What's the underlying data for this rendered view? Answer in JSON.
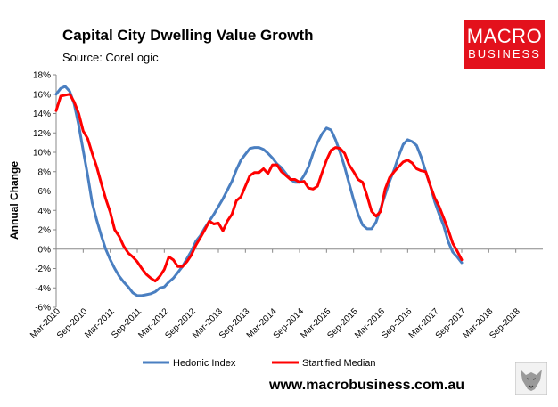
{
  "header": {
    "title": "Capital City Dwelling Value Growth",
    "source": "Source: CoreLogic"
  },
  "logo": {
    "line1": "MACRO",
    "line2": "BUSINESS",
    "color": "#e3111c"
  },
  "footer": {
    "website": "www.macrobusiness.com.au",
    "mascot_icon": "wolf-icon"
  },
  "colors": {
    "hedonic": "#4a7fc1",
    "stratified": "#ff0000"
  },
  "chart_data": {
    "type": "line",
    "title": "Capital City Dwelling Value Growth",
    "xlabel": "",
    "ylabel": "Annual Change",
    "ylim": [
      -6,
      18
    ],
    "yticks": [
      -6,
      -4,
      -2,
      0,
      2,
      4,
      6,
      8,
      10,
      12,
      14,
      16,
      18
    ],
    "ytick_labels": [
      "-6%",
      "-4%",
      "-2%",
      "0%",
      "2%",
      "4%",
      "6%",
      "8%",
      "10%",
      "12%",
      "14%",
      "16%",
      "18%"
    ],
    "x_start": "Mar-2010",
    "x_end": "Oct-2018",
    "xticks": [
      0,
      6,
      12,
      18,
      24,
      30,
      36,
      42,
      48,
      54,
      60,
      66,
      72,
      78,
      84,
      90,
      96,
      102
    ],
    "xtick_labels": [
      "Mar-2010",
      "Sep-2010",
      "Mar-2011",
      "Sep-2011",
      "Mar-2012",
      "Sep-2012",
      "Mar-2013",
      "Sep-2013",
      "Mar-2014",
      "Sep-2014",
      "Mar-2015",
      "Sep-2015",
      "Mar-2016",
      "Sep-2016",
      "Mar-2017",
      "Sep-2017",
      "Mar-2018",
      "Sep-2018"
    ],
    "legend": "bottom",
    "grid": false,
    "series": [
      {
        "name": "Hedonic Index",
        "color": "#4a7fc1",
        "points": [
          [
            0,
            16
          ],
          [
            1,
            16.6
          ],
          [
            2,
            16.8
          ],
          [
            3,
            16.3
          ],
          [
            4,
            15
          ],
          [
            5,
            12.8
          ],
          [
            6,
            10.2
          ],
          [
            7,
            7.6
          ],
          [
            8,
            4.8
          ],
          [
            9,
            3
          ],
          [
            10,
            1.4
          ],
          [
            11,
            0
          ],
          [
            12,
            -1.1
          ],
          [
            13,
            -2
          ],
          [
            14,
            -2.8
          ],
          [
            15,
            -3.4
          ],
          [
            16,
            -3.9
          ],
          [
            17,
            -4.5
          ],
          [
            18,
            -4.8
          ],
          [
            19,
            -4.8
          ],
          [
            20,
            -4.7
          ],
          [
            21,
            -4.6
          ],
          [
            22,
            -4.4
          ],
          [
            23,
            -4
          ],
          [
            24,
            -3.9
          ],
          [
            25,
            -3.4
          ],
          [
            26,
            -3
          ],
          [
            27,
            -2.4
          ],
          [
            28,
            -1.8
          ],
          [
            29,
            -1
          ],
          [
            30,
            -0.2
          ],
          [
            31,
            0.8
          ],
          [
            32,
            1.4
          ],
          [
            33,
            2.2
          ],
          [
            34,
            2.9
          ],
          [
            35,
            3.6
          ],
          [
            36,
            4.4
          ],
          [
            37,
            5.2
          ],
          [
            38,
            6.1
          ],
          [
            39,
            7
          ],
          [
            40,
            8.2
          ],
          [
            41,
            9.2
          ],
          [
            42,
            9.8
          ],
          [
            43,
            10.4
          ],
          [
            44,
            10.5
          ],
          [
            45,
            10.5
          ],
          [
            46,
            10.3
          ],
          [
            47,
            9.9
          ],
          [
            48,
            9.4
          ],
          [
            49,
            8.8
          ],
          [
            50,
            8.4
          ],
          [
            51,
            7.8
          ],
          [
            52,
            7.2
          ],
          [
            53,
            6.9
          ],
          [
            54,
            6.9
          ],
          [
            55,
            7.6
          ],
          [
            56,
            8.5
          ],
          [
            57,
            9.9
          ],
          [
            58,
            11
          ],
          [
            59,
            11.9
          ],
          [
            60,
            12.5
          ],
          [
            61,
            12.3
          ],
          [
            62,
            11.3
          ],
          [
            63,
            10
          ],
          [
            64,
            8.5
          ],
          [
            65,
            6.8
          ],
          [
            66,
            5.1
          ],
          [
            67,
            3.6
          ],
          [
            68,
            2.5
          ],
          [
            69,
            2.1
          ],
          [
            70,
            2.1
          ],
          [
            71,
            2.8
          ],
          [
            72,
            4.2
          ],
          [
            73,
            5.6
          ],
          [
            74,
            7
          ],
          [
            75,
            8.2
          ],
          [
            76,
            9.6
          ],
          [
            77,
            10.8
          ],
          [
            78,
            11.3
          ],
          [
            79,
            11.1
          ],
          [
            80,
            10.7
          ],
          [
            81,
            9.5
          ],
          [
            82,
            8
          ],
          [
            83,
            6.6
          ],
          [
            84,
            4.9
          ],
          [
            85,
            3.6
          ],
          [
            86,
            2.4
          ],
          [
            87,
            0.8
          ],
          [
            88,
            -0.3
          ],
          [
            89,
            -0.8
          ],
          [
            90,
            -1.4
          ]
        ]
      },
      {
        "name": "Startified Median",
        "color": "#ff0000",
        "points": [
          [
            0,
            14.3
          ],
          [
            1,
            15.8
          ],
          [
            2,
            15.9
          ],
          [
            3,
            16
          ],
          [
            4,
            15.2
          ],
          [
            5,
            14
          ],
          [
            6,
            12.2
          ],
          [
            7,
            11.4
          ],
          [
            8,
            9.9
          ],
          [
            9,
            8.5
          ],
          [
            10,
            6.8
          ],
          [
            11,
            5.2
          ],
          [
            12,
            3.8
          ],
          [
            13,
            2
          ],
          [
            14,
            1.3
          ],
          [
            15,
            0.3
          ],
          [
            16,
            -0.4
          ],
          [
            17,
            -0.8
          ],
          [
            18,
            -1.3
          ],
          [
            19,
            -2
          ],
          [
            20,
            -2.6
          ],
          [
            21,
            -3
          ],
          [
            22,
            -3.3
          ],
          [
            23,
            -2.8
          ],
          [
            24,
            -2.1
          ],
          [
            25,
            -0.8
          ],
          [
            26,
            -1.1
          ],
          [
            27,
            -1.8
          ],
          [
            28,
            -1.8
          ],
          [
            29,
            -1.3
          ],
          [
            30,
            -0.6
          ],
          [
            31,
            0.4
          ],
          [
            32,
            1.2
          ],
          [
            33,
            2
          ],
          [
            34,
            2.9
          ],
          [
            35,
            2.6
          ],
          [
            36,
            2.7
          ],
          [
            37,
            1.9
          ],
          [
            38,
            2.9
          ],
          [
            39,
            3.6
          ],
          [
            40,
            5
          ],
          [
            41,
            5.4
          ],
          [
            42,
            6.5
          ],
          [
            43,
            7.6
          ],
          [
            44,
            7.9
          ],
          [
            45,
            7.9
          ],
          [
            46,
            8.3
          ],
          [
            47,
            7.8
          ],
          [
            48,
            8.7
          ],
          [
            49,
            8.7
          ],
          [
            50,
            8
          ],
          [
            51,
            7.6
          ],
          [
            52,
            7.2
          ],
          [
            53,
            7.2
          ],
          [
            54,
            6.9
          ],
          [
            55,
            7
          ],
          [
            56,
            6.3
          ],
          [
            57,
            6.2
          ],
          [
            58,
            6.5
          ],
          [
            59,
            7.9
          ],
          [
            60,
            9.2
          ],
          [
            61,
            10.2
          ],
          [
            62,
            10.5
          ],
          [
            63,
            10.4
          ],
          [
            64,
            9.9
          ],
          [
            65,
            8.7
          ],
          [
            66,
            8
          ],
          [
            67,
            7.2
          ],
          [
            68,
            6.9
          ],
          [
            69,
            5.5
          ],
          [
            70,
            3.9
          ],
          [
            71,
            3.4
          ],
          [
            72,
            3.9
          ],
          [
            73,
            6.2
          ],
          [
            74,
            7.4
          ],
          [
            75,
            8
          ],
          [
            76,
            8.5
          ],
          [
            77,
            9
          ],
          [
            78,
            9.2
          ],
          [
            79,
            8.9
          ],
          [
            80,
            8.3
          ],
          [
            81,
            8.1
          ],
          [
            82,
            8
          ],
          [
            83,
            6.6
          ],
          [
            84,
            5.3
          ],
          [
            85,
            4.4
          ],
          [
            86,
            3.2
          ],
          [
            87,
            2
          ],
          [
            88,
            0.6
          ],
          [
            89,
            -0.2
          ],
          [
            90,
            -1.1
          ]
        ]
      }
    ]
  }
}
